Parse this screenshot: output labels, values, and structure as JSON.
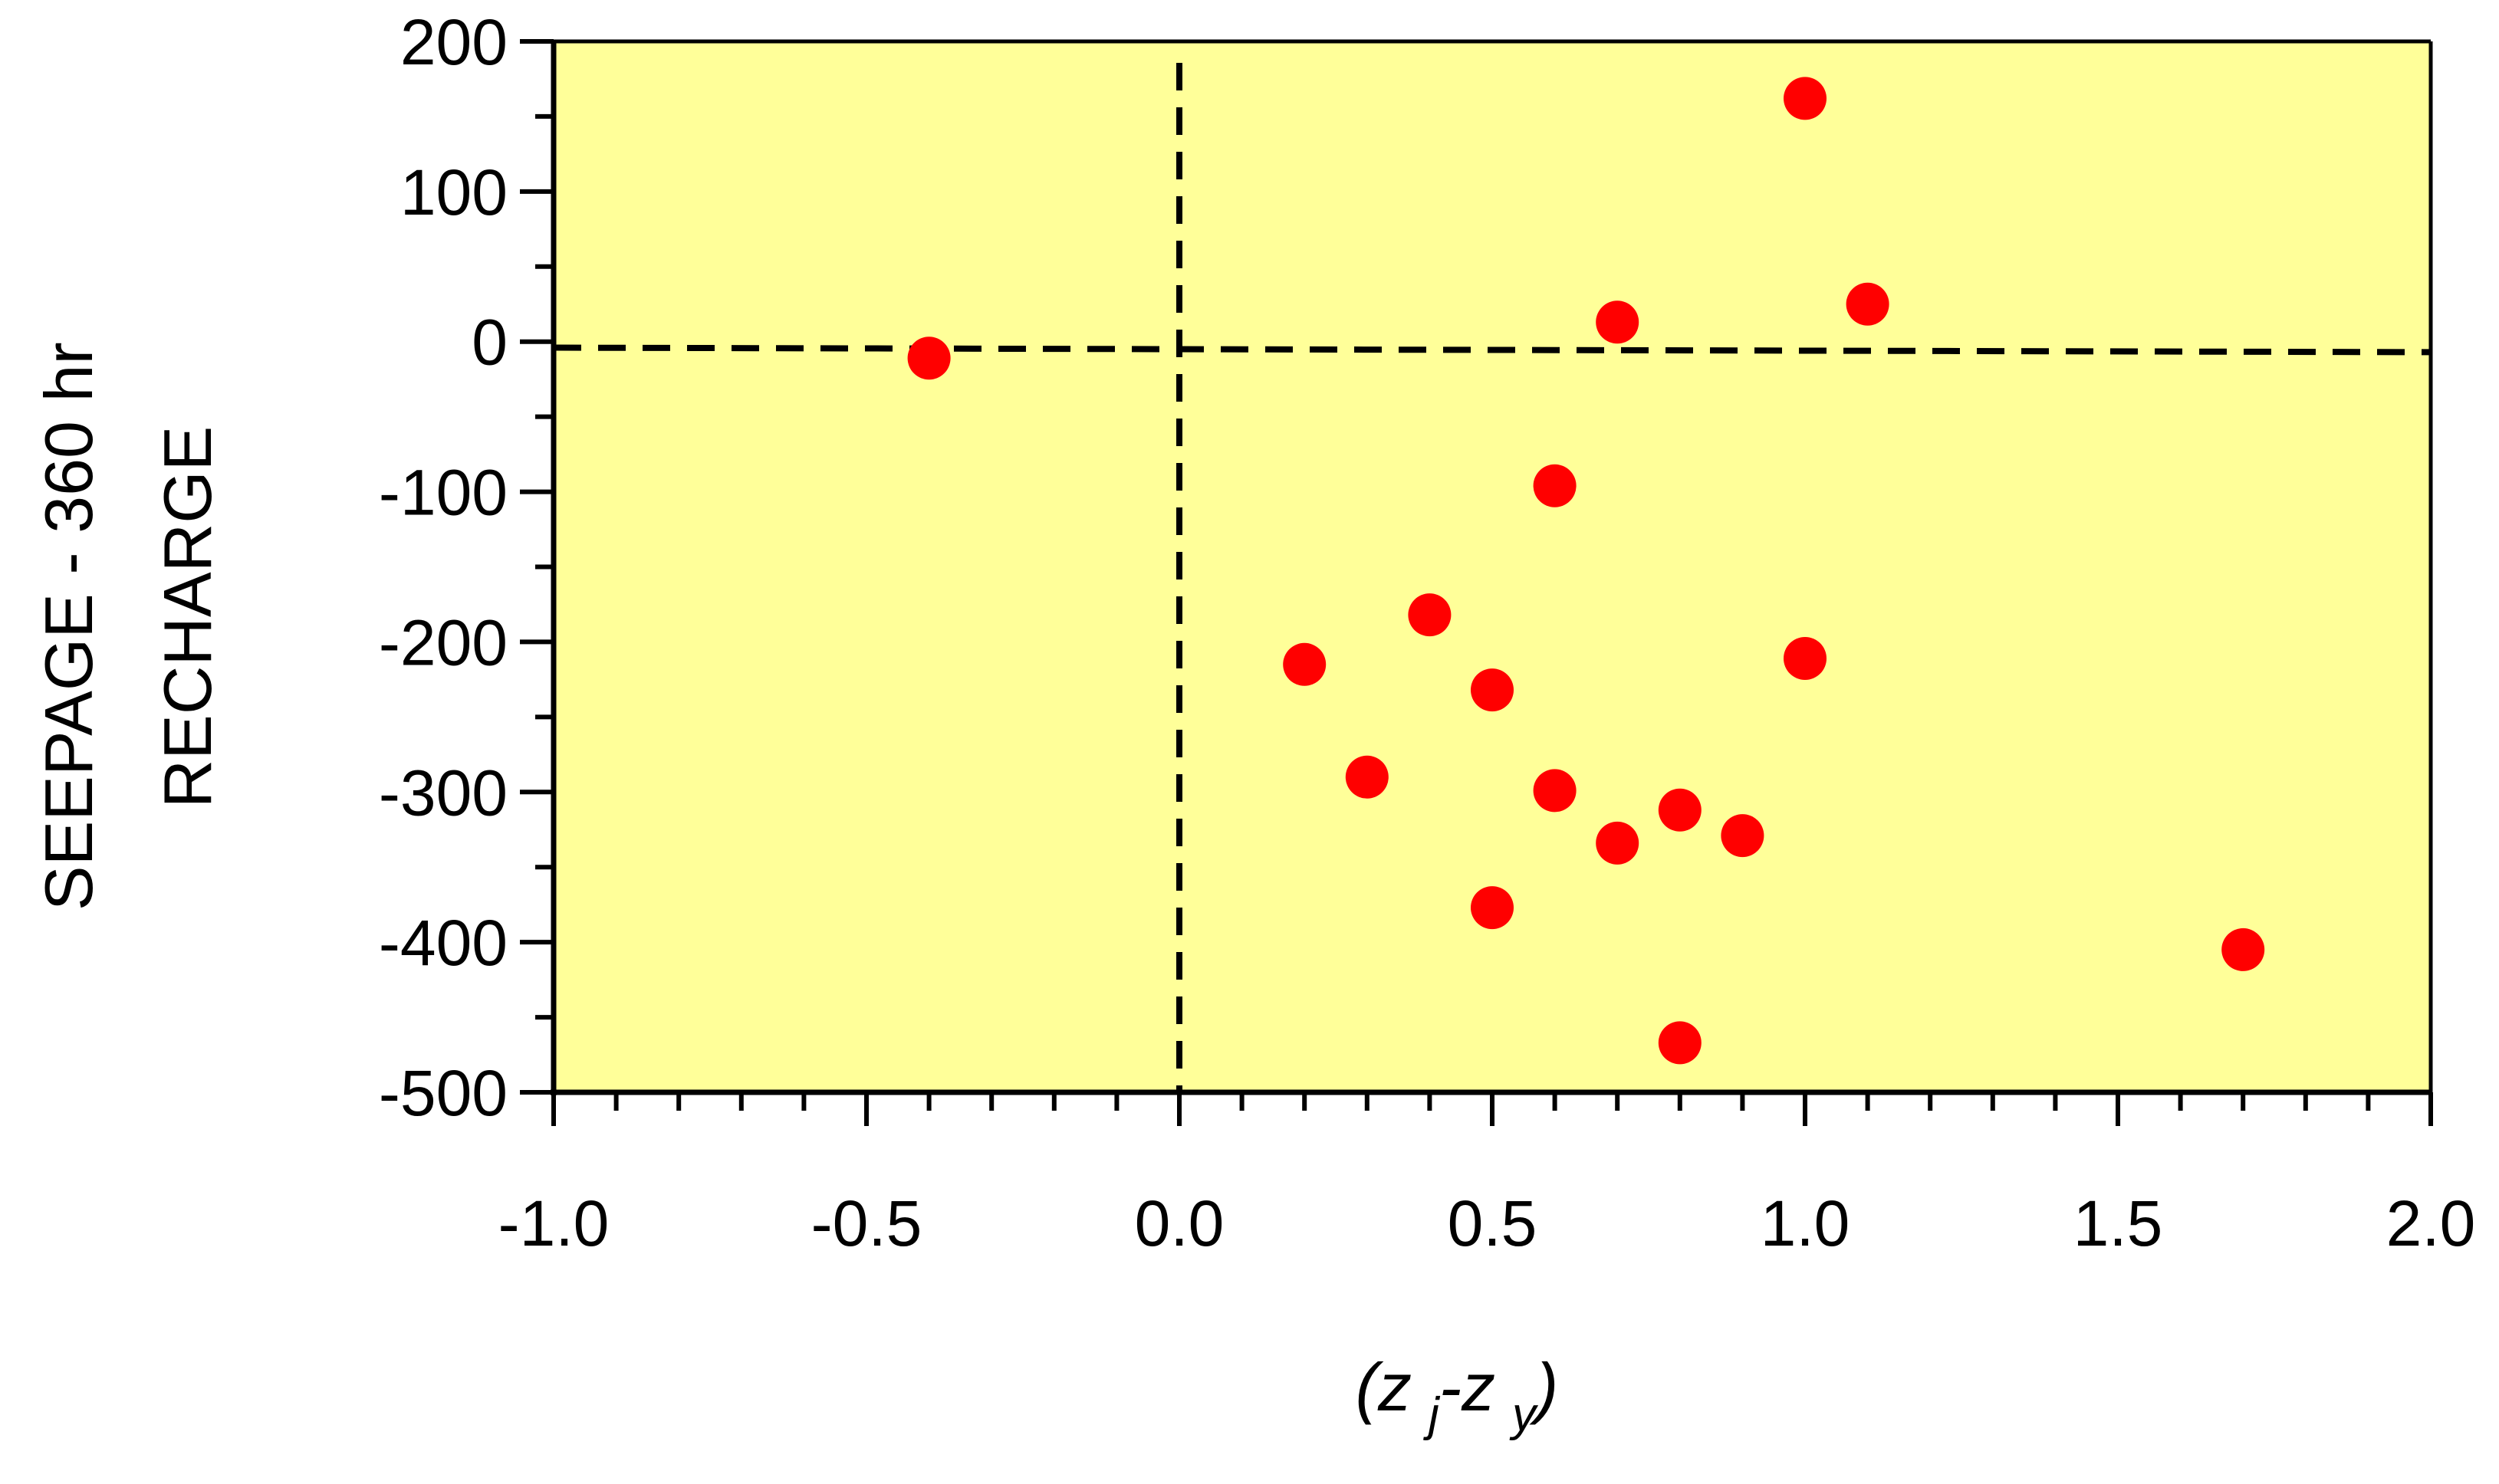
{
  "chart_data": {
    "type": "scatter",
    "title": "",
    "ylabel_lines": [
      "SEEPAGE - 360 hr",
      "RECHARGE"
    ],
    "xlabel": {
      "open": "(",
      "z1": "z",
      "sub1": "j",
      "dash": "-",
      "z2": "z",
      "sub2": "y",
      "close": ")"
    },
    "xlim": [
      -1.0,
      2.0
    ],
    "ylim": [
      -500,
      200
    ],
    "x_ticks": [
      -1.0,
      -0.5,
      0.0,
      0.5,
      1.0,
      1.5,
      2.0
    ],
    "x_tick_labels": [
      "-1.0",
      "-0.5",
      "0.0",
      "0.5",
      "1.0",
      "1.5",
      "2.0"
    ],
    "y_ticks": [
      200,
      100,
      0,
      -100,
      -200,
      -300,
      -400,
      -500
    ],
    "y_tick_labels": [
      "200",
      "100",
      "0",
      "-100",
      "-200",
      "-300",
      "-400",
      "-500"
    ],
    "grid": false,
    "legend": "none",
    "reference_lines": {
      "vertical_x": 0.0,
      "horizontal": {
        "x": [
          -1.0,
          2.0
        ],
        "y": [
          -4,
          -7
        ]
      },
      "style": "dashed"
    },
    "series": [
      {
        "points": [
          {
            "x": -0.4,
            "y": -11
          },
          {
            "x": 0.2,
            "y": -215
          },
          {
            "x": 0.3,
            "y": -290
          },
          {
            "x": 0.4,
            "y": -182
          },
          {
            "x": 0.5,
            "y": -232
          },
          {
            "x": 0.5,
            "y": -377
          },
          {
            "x": 0.6,
            "y": -96
          },
          {
            "x": 0.6,
            "y": -299
          },
          {
            "x": 0.7,
            "y": 13
          },
          {
            "x": 0.7,
            "y": -334
          },
          {
            "x": 0.8,
            "y": -312
          },
          {
            "x": 0.8,
            "y": -467
          },
          {
            "x": 0.9,
            "y": -329
          },
          {
            "x": 1.0,
            "y": 162
          },
          {
            "x": 1.0,
            "y": -211
          },
          {
            "x": 1.1,
            "y": 25
          },
          {
            "x": 1.7,
            "y": -405
          }
        ]
      }
    ],
    "colors": {
      "plot_background": "#FFFF99",
      "marker": "#FF0000",
      "axis": "#000000",
      "reference_line": "#000000"
    }
  }
}
